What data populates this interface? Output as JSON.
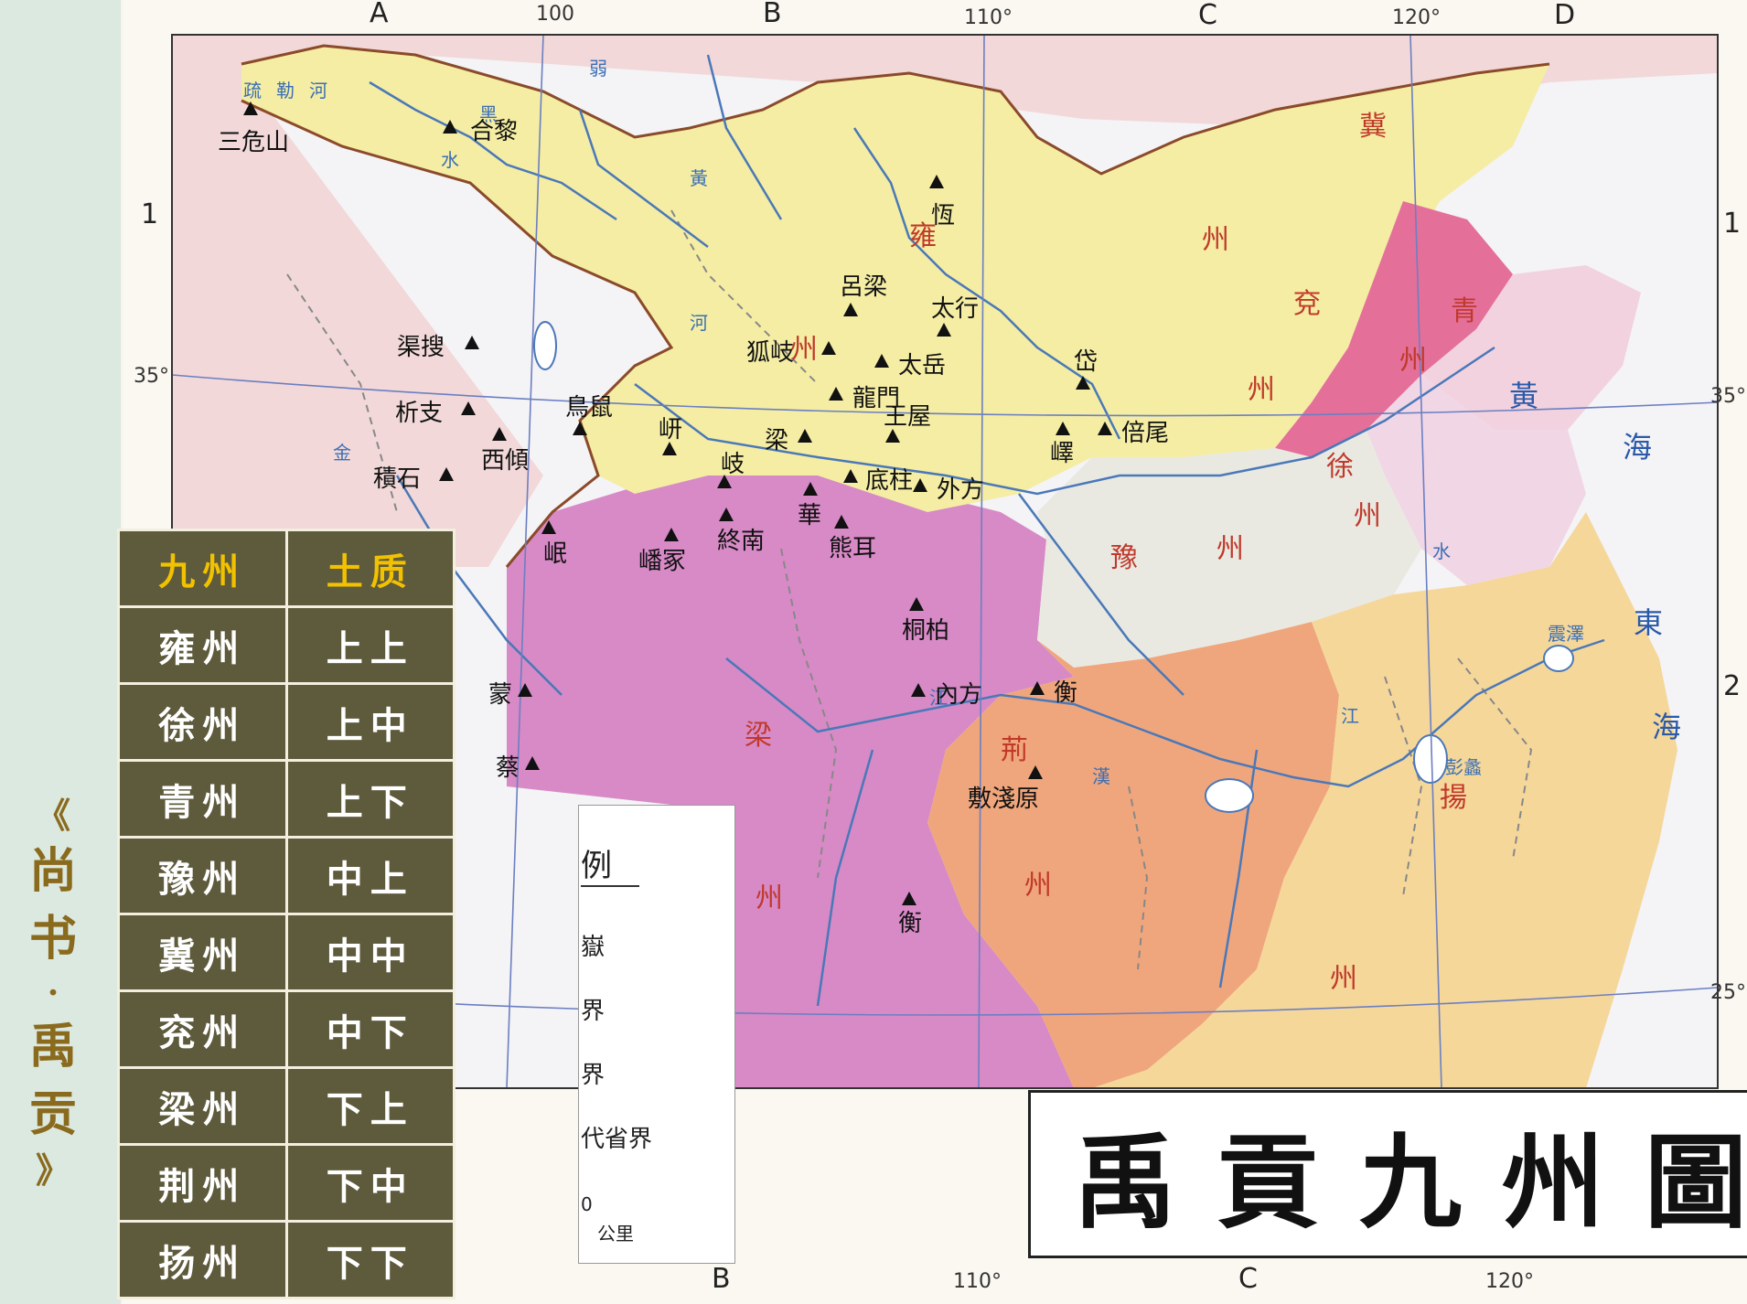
{
  "side_title": {
    "open": "《",
    "line1": "尚",
    "line2": "书",
    "sep": "·",
    "line3": "禹",
    "line4": "贡",
    "close": "》"
  },
  "table": {
    "headers": [
      "九州",
      "土质"
    ],
    "rows": [
      [
        "雍州",
        "上上"
      ],
      [
        "徐州",
        "上中"
      ],
      [
        "青州",
        "上下"
      ],
      [
        "豫州",
        "中上"
      ],
      [
        "冀州",
        "中中"
      ],
      [
        "兖州",
        "中下"
      ],
      [
        "梁州",
        "下上"
      ],
      [
        "荆州",
        "下中"
      ],
      [
        "扬州",
        "下下"
      ]
    ]
  },
  "map": {
    "title": "禹貢九州圖",
    "grid_letters_top": [
      "A",
      "B",
      "C",
      "D"
    ],
    "grid_letters_bottom": [
      "B",
      "C"
    ],
    "grid_rows": [
      "1",
      "2"
    ],
    "longitude_top": [
      "100",
      "110°",
      "120°"
    ],
    "longitude_bottom": [
      "110°",
      "120°"
    ],
    "latitude": [
      "35°",
      "35°",
      "25°"
    ],
    "legend_fragments": [
      "例",
      "嶽",
      "界",
      "界",
      "代省界",
      "0",
      "公里"
    ],
    "peaks": [
      "三危山",
      "合黎",
      "恆",
      "呂梁",
      "太行",
      "渠搜",
      "狐岐",
      "太岳",
      "析支",
      "鳥鼠",
      "龍門",
      "岱",
      "西傾",
      "岍",
      "梁",
      "王屋",
      "嶧",
      "倍尾",
      "積石",
      "岐",
      "底柱",
      "外方",
      "華",
      "終南",
      "岷",
      "嶓冢",
      "熊耳",
      "桐柏",
      "內方",
      "衡",
      "蒙",
      "蔡",
      "敷淺原",
      "衡"
    ],
    "provinces": [
      {
        "name": "雍州",
        "chars": [
          "雍",
          "州"
        ],
        "color": "#f4eda3"
      },
      {
        "name": "冀州",
        "chars": [
          "冀",
          "州"
        ],
        "color": "#f4eda3"
      },
      {
        "name": "兖州",
        "chars": [
          "兗",
          "州"
        ],
        "color": "#e4709a"
      },
      {
        "name": "青州",
        "chars": [
          "青",
          "州"
        ],
        "color": "#f2d2df"
      },
      {
        "name": "徐州",
        "chars": [
          "徐",
          "州"
        ],
        "color": "#f1d6e5"
      },
      {
        "name": "豫州",
        "chars": [
          "豫",
          "州"
        ],
        "color": "#e9e9e2"
      },
      {
        "name": "梁州",
        "chars": [
          "梁",
          "州"
        ],
        "color": "#d78ac6"
      },
      {
        "name": "荊州",
        "chars": [
          "荊",
          "州"
        ],
        "color": "#f0a67c"
      },
      {
        "name": "揚州",
        "chars": [
          "揚",
          "州"
        ],
        "color": "#f5d79a"
      }
    ],
    "seas": [
      "黃",
      "海",
      "東",
      "海"
    ],
    "rivers": [
      "弱",
      "黑",
      "水",
      "疏",
      "勒",
      "河",
      "黃",
      "河",
      "金",
      "江",
      "漢",
      "彭蠡",
      "震澤",
      "江",
      "水"
    ]
  }
}
